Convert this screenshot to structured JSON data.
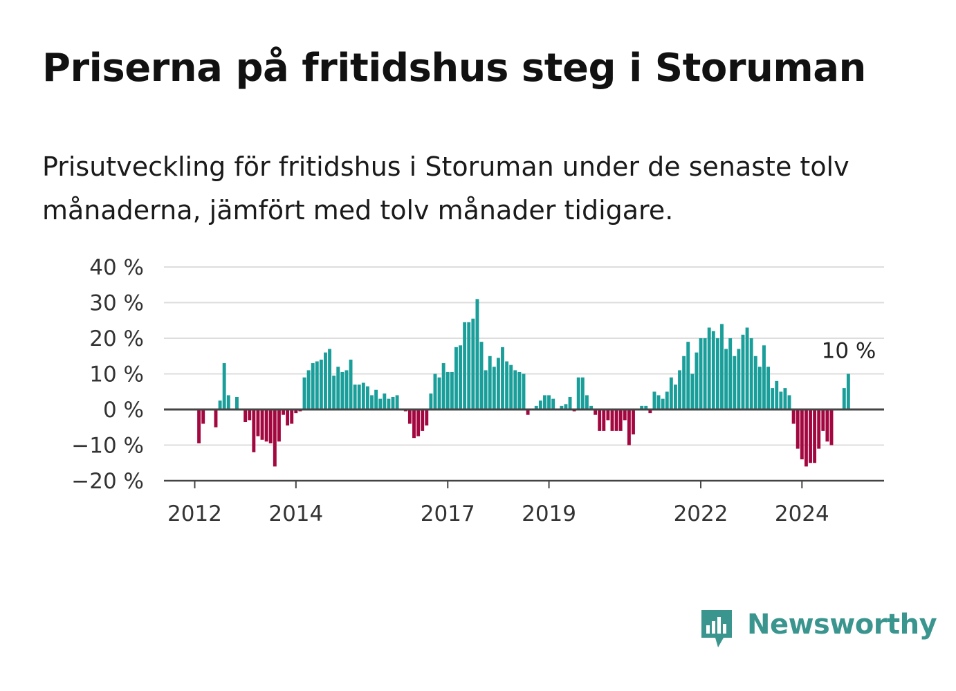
{
  "header": {
    "title": "Priserna på fritidshus steg i Storuman",
    "subtitle": "Prisutveckling för fritidshus i Storuman under de senaste tolv månaderna, jämfört med tolv månader tidigare."
  },
  "brand": {
    "name": "Newsworthy",
    "icon": "newsworthy-logo-icon",
    "color": "#3b958f"
  },
  "colors": {
    "positive": "#1a9e9a",
    "negative": "#a3073f",
    "grid": "#dddddd",
    "axis": "#444444"
  },
  "chart_data": {
    "type": "bar",
    "title": "Priserna på fritidshus steg i Storuman",
    "subtitle": "Prisutveckling för fritidshus i Storuman under de senaste tolv månaderna, jämfört med tolv månader tidigare.",
    "unit": "%",
    "ylim": [
      -20,
      40
    ],
    "y_ticks": [
      -20,
      -10,
      0,
      10,
      20,
      30,
      40
    ],
    "y_tick_labels": [
      "−20 %",
      "−10 %",
      "0 %",
      "10 %",
      "20 %",
      "30 %",
      "40 %"
    ],
    "grid": true,
    "start": "2012-01",
    "x_ticks": [
      "2012",
      "2014",
      "2017",
      "2019",
      "2022",
      "2024"
    ],
    "end_label": "10 %",
    "values": [
      0,
      -9.5,
      -4,
      0,
      0,
      -5,
      2.5,
      13,
      4,
      0,
      3.5,
      0,
      -3.5,
      -3,
      -12,
      -7.5,
      -8.5,
      -9,
      -9.5,
      -16,
      -9,
      -1.5,
      -4.5,
      -4,
      -1,
      -0.5,
      9,
      11,
      13,
      13.5,
      14,
      16,
      17,
      9.5,
      12,
      10.5,
      11,
      14,
      7,
      7,
      7.5,
      6.5,
      4,
      5.5,
      3,
      4.5,
      3,
      3.5,
      4,
      0,
      -0.5,
      -4,
      -8,
      -7.5,
      -6,
      -4.5,
      4.5,
      10,
      9,
      13,
      10.5,
      10.5,
      17.5,
      18,
      24.5,
      24.5,
      25.5,
      31,
      19,
      11,
      15,
      12,
      14.5,
      17.5,
      13.5,
      12.5,
      11,
      10.5,
      10,
      -1.5,
      0,
      1,
      2.5,
      4,
      4,
      3,
      0,
      1,
      1.5,
      3.5,
      -0.5,
      9,
      9,
      4,
      1,
      -1.5,
      -6,
      -6,
      -3,
      -6,
      -6,
      -6,
      -3,
      -10,
      -7,
      0,
      1,
      1,
      -1,
      5,
      4,
      3,
      5,
      9,
      7,
      11,
      15,
      19,
      10,
      16,
      20,
      20,
      23,
      22,
      20,
      24,
      17,
      20,
      15,
      17,
      21,
      23,
      20,
      15,
      12,
      18,
      12,
      6,
      8,
      5,
      6,
      4,
      -4,
      -11,
      -14,
      -16,
      -15,
      -15,
      -11,
      -6,
      -9,
      -10,
      0,
      0,
      6,
      10
    ]
  }
}
